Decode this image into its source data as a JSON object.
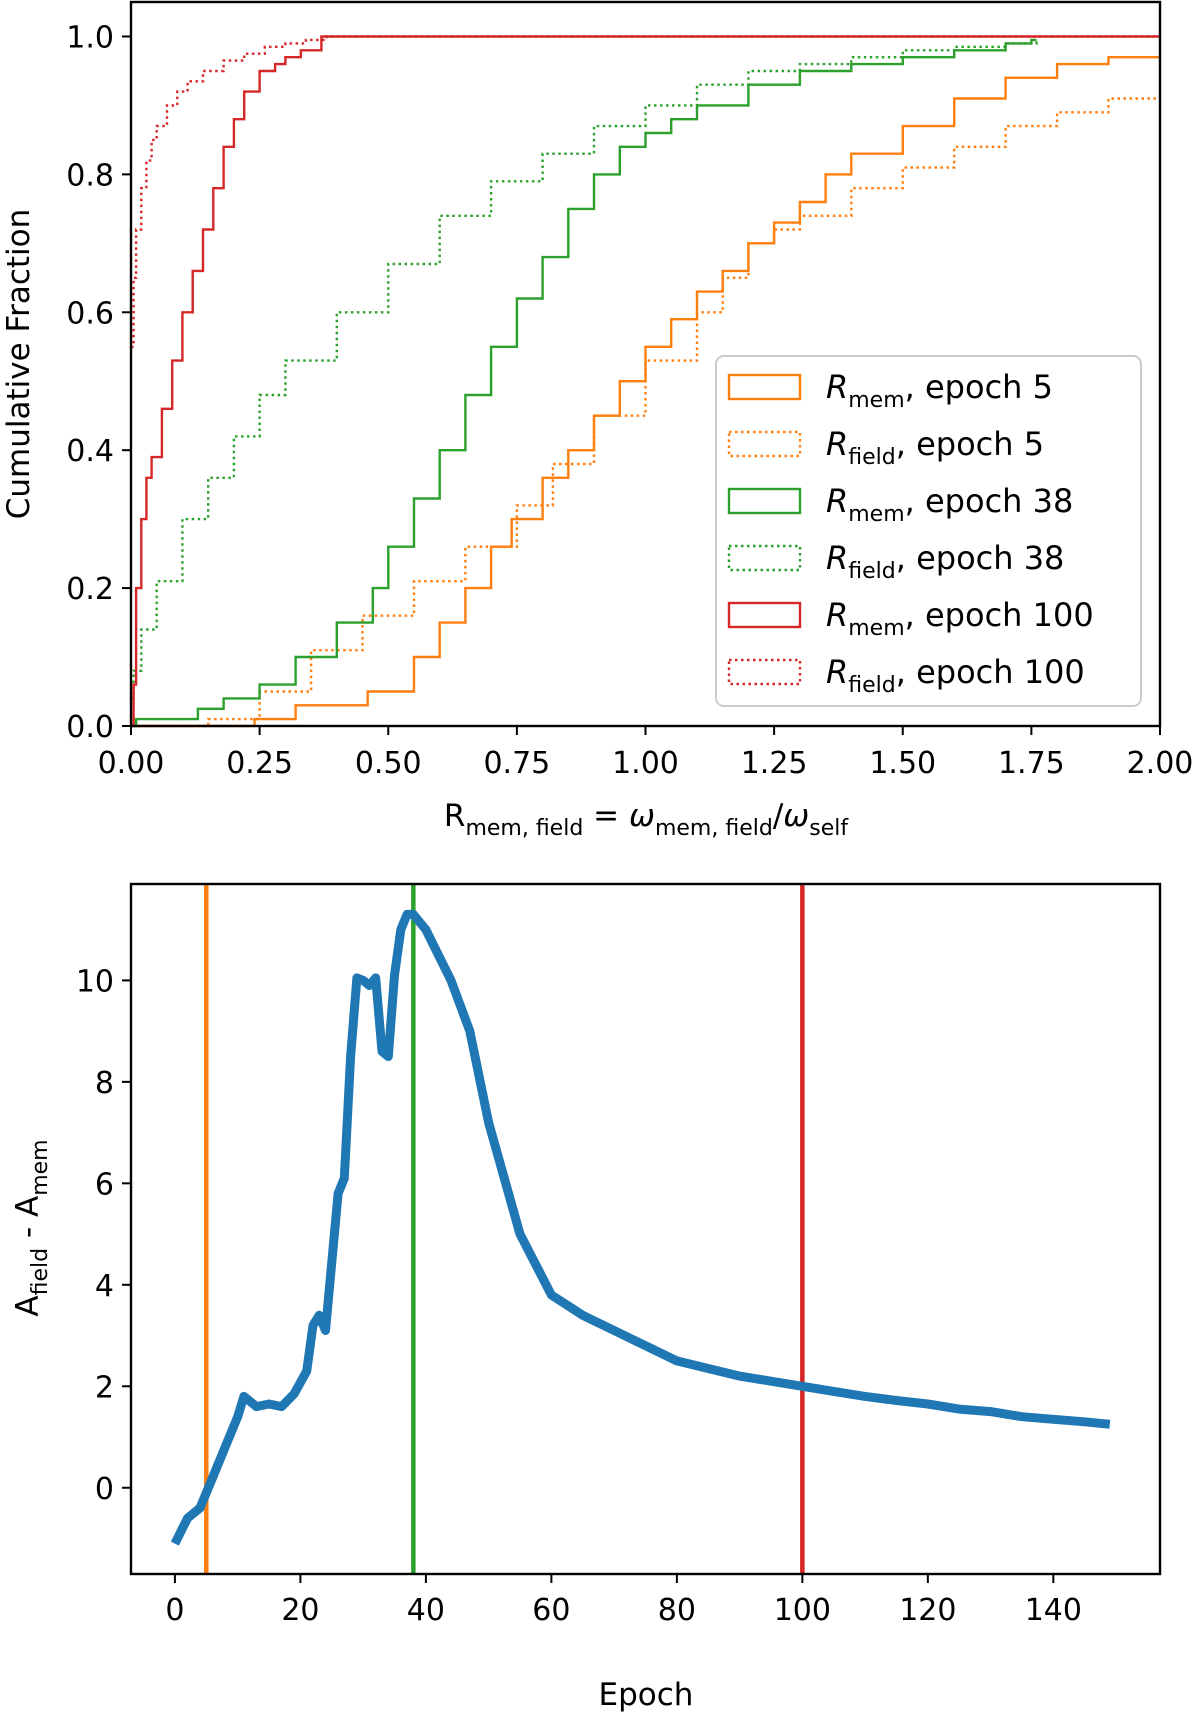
{
  "figure": {
    "colors": {
      "epoch5": "#ff7f0e",
      "epoch38": "#2ca02c",
      "epoch100": "#d62728",
      "curve": "#1f77b4",
      "axis": "#000000",
      "background": "#ffffff"
    }
  },
  "chart_data": [
    {
      "type": "line",
      "subtype": "cumulative step histogram",
      "ylabel": "Cumulative Fraction",
      "xlabel": {
        "base": "R",
        "base_sub": "mem, field",
        "eq": " = ",
        "num": "ω",
        "num_sub": "mem, field",
        "slash": "/",
        "den": "ω",
        "den_sub": "self"
      },
      "xlim": [
        0,
        2
      ],
      "ylim": [
        0,
        1.05
      ],
      "xticks": [
        "0.00",
        "0.25",
        "0.50",
        "0.75",
        "1.00",
        "1.25",
        "1.50",
        "1.75",
        "2.00"
      ],
      "xtick_values": [
        0,
        0.25,
        0.5,
        0.75,
        1.0,
        1.25,
        1.5,
        1.75,
        2.0
      ],
      "yticks": [
        "0.0",
        "0.2",
        "0.4",
        "0.6",
        "0.8",
        "1.0"
      ],
      "ytick_values": [
        0,
        0.2,
        0.4,
        0.6,
        0.8,
        1.0
      ],
      "grid": false,
      "legend_position": "lower-right",
      "series": [
        {
          "id": "rmem5",
          "color_key": "epoch5",
          "style": "solid",
          "legend": {
            "sym": "R",
            "sub": "mem",
            "rest": ", epoch 5"
          },
          "x": [
            0,
            0.24,
            0.24,
            0.32,
            0.46,
            0.55,
            0.6,
            0.65,
            0.7,
            0.74,
            0.8,
            0.85,
            0.9,
            0.95,
            1.0,
            1.05,
            1.1,
            1.15,
            1.2,
            1.25,
            1.3,
            1.35,
            1.4,
            1.5,
            1.6,
            1.7,
            1.8,
            1.9,
            2.0
          ],
          "y": [
            0,
            0,
            0.01,
            0.03,
            0.05,
            0.1,
            0.15,
            0.2,
            0.26,
            0.3,
            0.36,
            0.4,
            0.45,
            0.5,
            0.55,
            0.59,
            0.63,
            0.66,
            0.7,
            0.73,
            0.76,
            0.8,
            0.83,
            0.87,
            0.91,
            0.94,
            0.96,
            0.97,
            0.97
          ]
        },
        {
          "id": "rfield5",
          "color_key": "epoch5",
          "style": "dotted",
          "legend": {
            "sym": "R",
            "sub": "field",
            "rest": ", epoch 5"
          },
          "x": [
            0,
            0.12,
            0.15,
            0.25,
            0.35,
            0.45,
            0.55,
            0.65,
            0.75,
            0.82,
            0.9,
            1.0,
            1.1,
            1.15,
            1.2,
            1.25,
            1.3,
            1.4,
            1.5,
            1.6,
            1.7,
            1.8,
            1.9,
            2.0
          ],
          "y": [
            0,
            0,
            0.01,
            0.05,
            0.11,
            0.16,
            0.21,
            0.26,
            0.32,
            0.38,
            0.45,
            0.53,
            0.6,
            0.65,
            0.7,
            0.72,
            0.74,
            0.78,
            0.81,
            0.84,
            0.87,
            0.89,
            0.91,
            0.935
          ]
        },
        {
          "id": "rmem38",
          "color_key": "epoch38",
          "style": "solid",
          "legend": {
            "sym": "R",
            "sub": "mem",
            "rest": ", epoch 38"
          },
          "x": [
            0,
            0.01,
            0.12,
            0.13,
            0.18,
            0.25,
            0.32,
            0.4,
            0.47,
            0.5,
            0.55,
            0.6,
            0.65,
            0.7,
            0.75,
            0.8,
            0.85,
            0.9,
            0.95,
            1.0,
            1.05,
            1.1,
            1.2,
            1.3,
            1.4,
            1.5,
            1.6,
            1.7,
            1.75,
            1.76
          ],
          "y": [
            0,
            0.01,
            0.01,
            0.025,
            0.04,
            0.06,
            0.1,
            0.15,
            0.2,
            0.26,
            0.33,
            0.4,
            0.48,
            0.55,
            0.62,
            0.68,
            0.75,
            0.8,
            0.84,
            0.86,
            0.88,
            0.9,
            0.93,
            0.95,
            0.96,
            0.97,
            0.98,
            0.99,
            0.995,
            0.995
          ]
        },
        {
          "id": "rfield38",
          "color_key": "epoch38",
          "style": "dotted",
          "legend": {
            "sym": "R",
            "sub": "field",
            "rest": ", epoch 38"
          },
          "x": [
            0,
            0.005,
            0.02,
            0.05,
            0.1,
            0.15,
            0.2,
            0.25,
            0.3,
            0.4,
            0.5,
            0.6,
            0.7,
            0.8,
            0.9,
            1.0,
            1.1,
            1.2,
            1.3,
            1.4,
            1.5,
            1.6,
            1.7,
            1.76
          ],
          "y": [
            0.04,
            0.08,
            0.14,
            0.21,
            0.3,
            0.36,
            0.42,
            0.48,
            0.53,
            0.6,
            0.67,
            0.74,
            0.79,
            0.83,
            0.87,
            0.9,
            0.93,
            0.95,
            0.96,
            0.97,
            0.98,
            0.985,
            0.99,
            0.995
          ]
        },
        {
          "id": "rmem100",
          "color_key": "epoch100",
          "style": "solid",
          "legend": {
            "sym": "R",
            "sub": "mem",
            "rest": ", epoch 100"
          },
          "x": [
            0,
            0.005,
            0.01,
            0.02,
            0.03,
            0.04,
            0.06,
            0.08,
            0.1,
            0.12,
            0.14,
            0.16,
            0.18,
            0.2,
            0.22,
            0.25,
            0.28,
            0.3,
            0.33,
            0.37,
            0.5,
            2.0
          ],
          "y": [
            0,
            0.06,
            0.2,
            0.3,
            0.36,
            0.39,
            0.46,
            0.53,
            0.6,
            0.66,
            0.72,
            0.78,
            0.84,
            0.88,
            0.92,
            0.95,
            0.96,
            0.97,
            0.98,
            1.0,
            1.0,
            1.0
          ]
        },
        {
          "id": "rfield100",
          "color_key": "epoch100",
          "style": "dotted",
          "legend": {
            "sym": "R",
            "sub": "field",
            "rest": ", epoch 100"
          },
          "x": [
            0,
            0.005,
            0.01,
            0.02,
            0.03,
            0.04,
            0.05,
            0.07,
            0.09,
            0.11,
            0.14,
            0.18,
            0.22,
            0.26,
            0.3,
            0.34,
            0.38,
            2.0
          ],
          "y": [
            0.55,
            0.65,
            0.72,
            0.78,
            0.82,
            0.85,
            0.87,
            0.9,
            0.92,
            0.935,
            0.95,
            0.965,
            0.975,
            0.985,
            0.99,
            0.995,
            1.0,
            1.0
          ]
        }
      ]
    },
    {
      "type": "line",
      "xlabel": "Epoch",
      "ylabel": {
        "a": "A",
        "a_sub": "field",
        "mid": " - ",
        "b": "A",
        "b_sub": "mem"
      },
      "xlim": [
        -7,
        157
      ],
      "ylim": [
        -1.7,
        11.9
      ],
      "xticks": [
        "0",
        "20",
        "40",
        "60",
        "80",
        "100",
        "120",
        "140"
      ],
      "xtick_values": [
        0,
        20,
        40,
        60,
        80,
        100,
        120,
        140
      ],
      "yticks": [
        "0",
        "2",
        "4",
        "6",
        "8",
        "10"
      ],
      "ytick_values": [
        0,
        2,
        4,
        6,
        8,
        10
      ],
      "grid": false,
      "vlines": [
        {
          "x": 5,
          "color_key": "epoch5"
        },
        {
          "x": 38,
          "color_key": "epoch38"
        },
        {
          "x": 100,
          "color_key": "epoch100"
        }
      ],
      "series": [
        {
          "id": "afield_minus_amem",
          "color_key": "curve",
          "x": [
            0,
            2,
            4,
            6,
            8,
            10,
            11,
            13,
            15,
            17,
            19,
            21,
            22,
            23,
            24,
            26,
            27,
            28,
            29,
            30,
            31,
            32,
            33,
            34,
            35,
            36,
            37,
            38,
            40,
            42,
            44,
            47,
            50,
            55,
            60,
            65,
            70,
            75,
            80,
            85,
            90,
            95,
            100,
            105,
            110,
            115,
            120,
            125,
            130,
            135,
            140,
            145,
            149
          ],
          "y": [
            -1.1,
            -0.6,
            -0.4,
            0.2,
            0.8,
            1.4,
            1.8,
            1.6,
            1.65,
            1.6,
            1.85,
            2.3,
            3.2,
            3.4,
            3.1,
            5.8,
            6.1,
            8.5,
            10.05,
            10.0,
            9.9,
            10.05,
            8.6,
            8.5,
            10.1,
            11.0,
            11.3,
            11.3,
            11.0,
            10.5,
            10.0,
            9.0,
            7.2,
            5.0,
            3.8,
            3.4,
            3.1,
            2.8,
            2.5,
            2.35,
            2.2,
            2.1,
            2.0,
            1.9,
            1.8,
            1.72,
            1.65,
            1.55,
            1.5,
            1.4,
            1.35,
            1.3,
            1.25
          ]
        }
      ]
    }
  ]
}
